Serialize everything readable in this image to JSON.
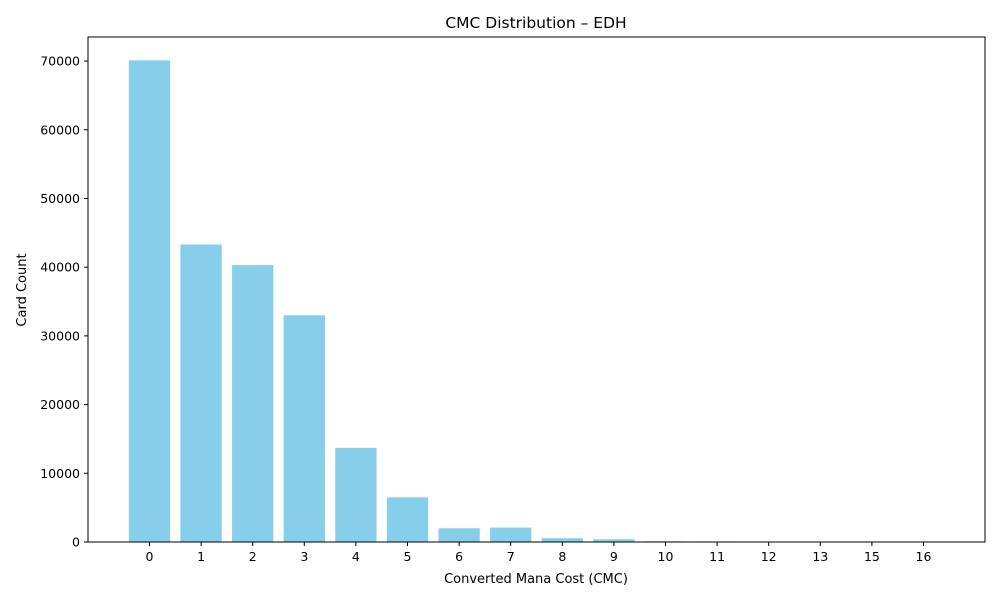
{
  "chart_data": {
    "type": "bar",
    "title": "CMC Distribution – EDH",
    "xlabel": "Converted Mana Cost (CMC)",
    "ylabel": "Card Count",
    "categories": [
      "0",
      "1",
      "2",
      "3",
      "4",
      "5",
      "6",
      "7",
      "8",
      "9",
      "10",
      "11",
      "12",
      "13",
      "15",
      "16"
    ],
    "values": [
      70100,
      43300,
      40300,
      33000,
      13700,
      6500,
      2000,
      2100,
      550,
      400,
      100,
      80,
      60,
      50,
      10,
      15
    ],
    "ylim": [
      0,
      73500
    ],
    "yticks": [
      0,
      10000,
      20000,
      30000,
      40000,
      50000,
      60000,
      70000
    ],
    "bar_color": "#87CEEB",
    "grid": false,
    "legend": "none"
  }
}
